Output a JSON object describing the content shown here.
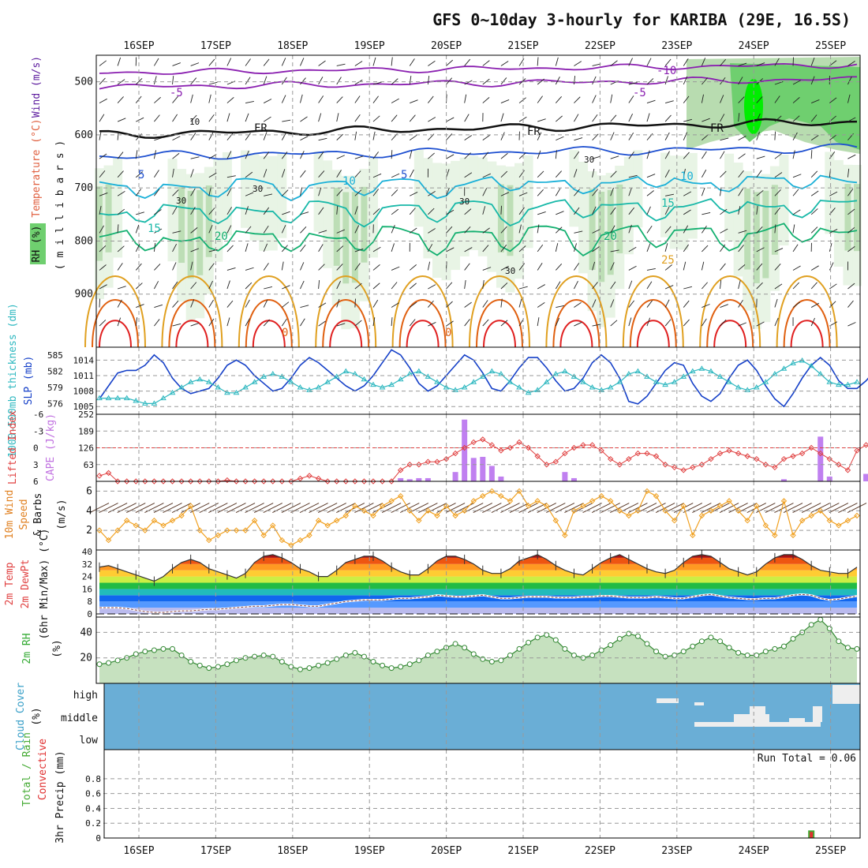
{
  "title": "GFS 0~10day 3-hourly for KARIBA (29E, 16.5S)",
  "days": [
    "16SEP",
    "17SEP",
    "18SEP",
    "19SEP",
    "20SEP",
    "21SEP",
    "22SEP",
    "23SEP",
    "24SEP",
    "25SEP"
  ],
  "colors": {
    "temp_line_5": "#8a1fb0",
    "freezing": "#111111",
    "warm_blue": "#1d4fd0",
    "cyan": "#1ab0d8",
    "teal": "#17b8a8",
    "green_line": "#13b070",
    "orange": "#e0a020",
    "dark_orange": "#e06010",
    "red": "#e02020",
    "rh_light": "#e6f3e2",
    "rh_mid": "#b8dcb0",
    "rh_dark": "#6fcf6f",
    "rh_max": "#00ee00",
    "slp_line": "#1540c8",
    "thickness_line": "#2fb8c0",
    "cape_bar": "#c080f0",
    "lifted_index": "#e04040",
    "wind_speed": "#f0a020",
    "cloud_fill": "#6aaed6",
    "precip_total": "#44aa33",
    "precip_conv": "#e03030"
  },
  "chart_data": [
    {
      "type": "heatmap",
      "panel": "upper-air",
      "ylabel_left_parts": [
        "RH (%)",
        "Temperature (°C)",
        "Wind (m/s)"
      ],
      "ylabel_right": "( m i l l i b a r s )",
      "y_ticks": [
        "500",
        "600",
        "700",
        "800",
        "900"
      ],
      "ylim": [
        1000,
        450
      ],
      "contour_labels": [
        "-10",
        "-5",
        "-5",
        "FR",
        "FR",
        "FR",
        "5",
        "5",
        "10",
        "10",
        "15",
        "15",
        "20",
        "20",
        "25",
        "0",
        "0",
        "30",
        "30",
        "30",
        "30",
        "30"
      ],
      "levels": {
        "minus10": 483,
        "minus5": 510,
        "freezing": 600,
        "plus5": 640,
        "plus10": 695,
        "plus15": 740,
        "plus20": 790
      }
    },
    {
      "type": "line",
      "panel": "slp-thickness",
      "ylabel_left": "1000-500mb thickness (dm)",
      "ylabel_right": "SLP (mb)",
      "left_ticks": [
        "585",
        "582",
        "579",
        "576"
      ],
      "right_ticks": [
        "1014",
        "1011",
        "1008",
        "1005"
      ],
      "slp_ylim": [
        1003.5,
        1016.5
      ],
      "thickness_ylim": [
        574,
        586.5
      ],
      "series": [
        {
          "name": "SLP",
          "values": [
            1006.5,
            1009,
            1011.5,
            1012,
            1012,
            1013,
            1015,
            1013.5,
            1010.5,
            1008.5,
            1007.5,
            1008,
            1008.5,
            1010.5,
            1013,
            1014,
            1013,
            1011,
            1009.5,
            1008,
            1008.5,
            1010.5,
            1013,
            1014.5,
            1013.5,
            1012,
            1010.5,
            1009,
            1008,
            1009,
            1011,
            1013.5,
            1016,
            1015,
            1012.5,
            1009.5,
            1008,
            1009,
            1011,
            1013,
            1015,
            1014,
            1011.5,
            1008.5,
            1008,
            1010,
            1012.5,
            1014.5,
            1014.5,
            1012.5,
            1010,
            1008,
            1008.5,
            1010.5,
            1013.5,
            1015,
            1013.5,
            1010.5,
            1006,
            1005.5,
            1007,
            1009.5,
            1012,
            1013.5,
            1013,
            1009.5,
            1007,
            1006,
            1007.5,
            1010.5,
            1013,
            1014,
            1012,
            1009,
            1006.5,
            1005,
            1007.5,
            1010.5,
            1013,
            1014.5,
            1013,
            1010,
            1008.5,
            1008.5,
            1010,
            1012
          ]
        },
        {
          "name": "1000-500mb thickness",
          "values": [
            577,
            577,
            577,
            577,
            576.5,
            576,
            576,
            577,
            578,
            579,
            580,
            580.5,
            580,
            579,
            578,
            578,
            579,
            580,
            581,
            581.5,
            581,
            580,
            579,
            578.5,
            579,
            580,
            581,
            582,
            581.5,
            580.5,
            579.5,
            579,
            579.5,
            580.5,
            581.5,
            582,
            581,
            580,
            579,
            578.5,
            579,
            580,
            581,
            582,
            581.5,
            580,
            579,
            578,
            578.5,
            580,
            581.5,
            582,
            581,
            580,
            579,
            578.5,
            579,
            580,
            581.5,
            582,
            581,
            580,
            579.5,
            580,
            581,
            582,
            582.5,
            582,
            581,
            580,
            579,
            578.5,
            579,
            580,
            581.5,
            582.5,
            583.5,
            584,
            583,
            581.5,
            580,
            579.5,
            579.5,
            580
          ]
        }
      ]
    },
    {
      "type": "bar",
      "panel": "cape-lifted-index",
      "ylabel_left": "Lifted Index",
      "ylabel_right": "CAPE (J/kg)",
      "left_ticks": [
        "-6",
        "-3",
        "0",
        "3",
        "6"
      ],
      "right_ticks": [
        "252",
        "189",
        "126",
        "63"
      ],
      "cape_ylim": [
        0,
        252
      ],
      "li_ylim": [
        6,
        -6
      ],
      "series": [
        {
          "name": "CAPE",
          "values": [
            0,
            0,
            0,
            0,
            0,
            0,
            0,
            0,
            0,
            0,
            0,
            0,
            0,
            0,
            0,
            0,
            0,
            0,
            0,
            0,
            0,
            0,
            0,
            0,
            0,
            0,
            0,
            0,
            0,
            0,
            0,
            0,
            0,
            12,
            8,
            12,
            12,
            0,
            0,
            35,
            232,
            88,
            92,
            58,
            18,
            0,
            0,
            0,
            0,
            0,
            0,
            35,
            12,
            0,
            0,
            0,
            0,
            0,
            0,
            0,
            0,
            0,
            0,
            0,
            0,
            0,
            0,
            0,
            0,
            0,
            0,
            0,
            0,
            0,
            0,
            8,
            0,
            0,
            0,
            168,
            18,
            0,
            0,
            0,
            28,
            0
          ]
        },
        {
          "name": "Lifted Index",
          "values": [
            5,
            4.5,
            6,
            6,
            6,
            6,
            6,
            6,
            6,
            6,
            6,
            6,
            6,
            6,
            5.8,
            6,
            6,
            6,
            6,
            6,
            6,
            6,
            5.5,
            5,
            5.5,
            6,
            6,
            6,
            6,
            6,
            6,
            6,
            6,
            4,
            3,
            3,
            2.5,
            2.5,
            2,
            1,
            0,
            -1,
            -1.5,
            -0.5,
            0.5,
            0,
            -1,
            0,
            1.5,
            3,
            2.5,
            1,
            0,
            -0.5,
            -0.5,
            0.5,
            2,
            3,
            2,
            1,
            1,
            1.5,
            3,
            3.5,
            4,
            3.5,
            3,
            2,
            1,
            0.5,
            1,
            1.5,
            2,
            3,
            3.5,
            2,
            1.5,
            1,
            0,
            1,
            2,
            3,
            4,
            0.5,
            -0.5,
            0.5
          ]
        }
      ]
    },
    {
      "type": "line",
      "panel": "10m-wind",
      "ylabel_parts": [
        "10m Wind",
        "Speed",
        "& Barbs",
        "(m/s)"
      ],
      "y_ticks": [
        "6",
        "4",
        "2"
      ],
      "ylim": [
        0,
        7
      ],
      "series": [
        {
          "name": "Speed",
          "values": [
            2,
            1,
            2,
            3,
            2.5,
            2,
            3,
            2.5,
            3,
            3.5,
            4.5,
            2,
            1,
            1.5,
            2,
            2,
            2,
            3,
            1.5,
            2.5,
            1,
            0.5,
            1,
            1.5,
            3,
            2.5,
            3,
            3.5,
            4.5,
            4,
            3.5,
            4.5,
            5,
            5.5,
            4,
            3,
            4,
            3.5,
            4.5,
            3.5,
            4,
            5,
            5.5,
            6,
            5.5,
            5,
            6,
            4.5,
            5,
            4.5,
            3,
            1.5,
            4,
            4.5,
            5,
            5.5,
            5,
            4,
            3.5,
            4,
            6,
            5.5,
            4,
            3,
            4.5,
            1.5,
            3.5,
            4,
            4.5,
            5,
            4,
            3,
            4.5,
            2.5,
            1.5,
            5,
            1.5,
            3,
            3.5,
            4,
            3,
            2.5,
            3,
            3.5
          ]
        }
      ]
    },
    {
      "type": "area",
      "panel": "2m-temp",
      "ylabel_parts": [
        "2m Temp",
        "2m DewPt",
        "(6hr Min/Max) (°C)"
      ],
      "y_ticks": [
        "40",
        "32",
        "24",
        "16",
        "8",
        "0"
      ],
      "ylim": [
        -2,
        41
      ],
      "series": [
        {
          "name": "2m Temp",
          "values": [
            30,
            31,
            29,
            27,
            25,
            23,
            21,
            24,
            29,
            33,
            35,
            33,
            29,
            27,
            25,
            23,
            26,
            33,
            37,
            38,
            36,
            33,
            29,
            27,
            24,
            24,
            28,
            33,
            35,
            37,
            37,
            34,
            30,
            27,
            25,
            25,
            29,
            34,
            37,
            37,
            35,
            32,
            28,
            26,
            26,
            29,
            34,
            36,
            38,
            35,
            31,
            28,
            26,
            25,
            29,
            33,
            36,
            38,
            35,
            32,
            29,
            27,
            26,
            28,
            33,
            37,
            38,
            37,
            33,
            29,
            27,
            25,
            27,
            32,
            36,
            38,
            38,
            35,
            31,
            28,
            27,
            26,
            26,
            30
          ]
        },
        {
          "name": "2m DewPt",
          "values": [
            4,
            4,
            4,
            3.5,
            2.5,
            1.5,
            1,
            1,
            1.5,
            2,
            2,
            2.5,
            3,
            3,
            3.5,
            4,
            4.5,
            5,
            5,
            5.5,
            6,
            6,
            5.5,
            5,
            5,
            6,
            7,
            8,
            8.5,
            9,
            9,
            9,
            9.5,
            10,
            10,
            10.5,
            11,
            12,
            11.5,
            11,
            11,
            11.5,
            12,
            11,
            10,
            10,
            10.5,
            11,
            11,
            11,
            10.5,
            10.5,
            10.5,
            11,
            11,
            11.5,
            11.5,
            11,
            10.5,
            10.5,
            10.5,
            11,
            10.5,
            10,
            10,
            11,
            12,
            12.5,
            11.5,
            10.5,
            10,
            9.5,
            9.5,
            10,
            10,
            11,
            12,
            12.5,
            12,
            10,
            9,
            9.5,
            10.5,
            11.5
          ]
        }
      ]
    },
    {
      "type": "area",
      "panel": "2m-rh",
      "ylabel_parts": [
        "2m RH",
        "(%)"
      ],
      "y_ticks": [
        "40",
        "20"
      ],
      "ylim": [
        0,
        52
      ],
      "series": [
        {
          "name": "2m RH",
          "values": [
            15,
            16,
            18,
            20,
            23,
            25,
            26,
            27,
            27,
            22,
            17,
            14,
            12,
            13,
            15,
            18,
            20,
            21,
            22,
            21,
            17,
            13,
            11,
            12,
            14,
            16,
            19,
            22,
            24,
            21,
            17,
            14,
            12,
            13,
            15,
            18,
            22,
            25,
            28,
            31,
            28,
            23,
            19,
            17,
            18,
            22,
            27,
            32,
            36,
            38,
            34,
            27,
            22,
            20,
            22,
            26,
            30,
            35,
            39,
            37,
            31,
            25,
            21,
            22,
            25,
            29,
            33,
            36,
            33,
            28,
            24,
            22,
            22,
            25,
            27,
            29,
            35,
            40,
            46,
            50,
            43,
            33,
            28,
            27
          ]
        }
      ]
    },
    {
      "type": "heatmap",
      "panel": "cloud-cover",
      "ylabel_parts": [
        "Cloud Cover",
        "(%)"
      ],
      "y_ticks": [
        "high",
        "middle",
        "low"
      ],
      "layers": [
        "high",
        "middle",
        "low"
      ]
    },
    {
      "type": "bar",
      "panel": "precip",
      "ylabel_parts": [
        "Total / Rain",
        "Convective",
        "3hr Precip (mm)"
      ],
      "y_ticks": [
        "0.8",
        "0.6",
        "0.4",
        "0.2",
        "0"
      ],
      "ylim": [
        0,
        0.98
      ],
      "run_total_label": "Run Total = 0.06",
      "series": [
        {
          "name": "Total / Rain",
          "values": [
            0,
            0,
            0,
            0,
            0,
            0,
            0,
            0,
            0,
            0,
            0,
            0,
            0,
            0,
            0,
            0,
            0,
            0,
            0,
            0,
            0,
            0,
            0,
            0,
            0,
            0,
            0,
            0,
            0,
            0,
            0,
            0,
            0,
            0,
            0,
            0,
            0,
            0,
            0,
            0,
            0,
            0,
            0,
            0,
            0,
            0,
            0,
            0,
            0,
            0,
            0,
            0,
            0,
            0,
            0,
            0,
            0,
            0,
            0,
            0,
            0,
            0,
            0,
            0,
            0,
            0,
            0,
            0,
            0,
            0,
            0,
            0,
            0,
            0,
            0,
            0,
            0,
            0,
            0.06,
            0,
            0,
            0,
            0,
            0
          ]
        },
        {
          "name": "Convective",
          "values": [
            0,
            0,
            0,
            0,
            0,
            0,
            0,
            0,
            0,
            0,
            0,
            0,
            0,
            0,
            0,
            0,
            0,
            0,
            0,
            0,
            0,
            0,
            0,
            0,
            0,
            0,
            0,
            0,
            0,
            0,
            0,
            0,
            0,
            0,
            0,
            0,
            0,
            0,
            0,
            0,
            0,
            0,
            0,
            0,
            0,
            0,
            0,
            0,
            0,
            0,
            0,
            0,
            0,
            0,
            0,
            0,
            0,
            0,
            0,
            0,
            0,
            0,
            0,
            0,
            0,
            0,
            0,
            0,
            0,
            0,
            0,
            0,
            0,
            0,
            0,
            0,
            0,
            0,
            0.04,
            0,
            0,
            0,
            0,
            0
          ]
        }
      ]
    }
  ]
}
